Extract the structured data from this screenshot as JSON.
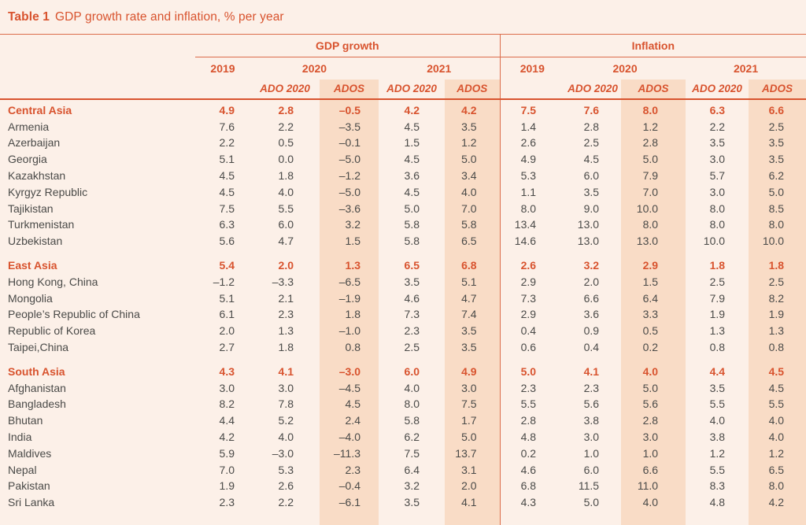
{
  "title": {
    "label": "Table 1",
    "text": "GDP growth rate and inflation, % per year"
  },
  "colors": {
    "accent": "#D8532E",
    "rule_line": "#DB6C4B",
    "shaded_column": "#F9DCC6",
    "background": "#FCF0E8",
    "value_text": "#4A4A48"
  },
  "table": {
    "groups": [
      {
        "label": "GDP growth"
      },
      {
        "label": "Inflation"
      }
    ],
    "years": [
      "2019",
      "2020",
      "2021"
    ],
    "sub_headers": [
      "ADO 2020",
      "ADOS"
    ],
    "rows": [
      {
        "name": "Central Asia",
        "region": true,
        "gdp": [
          "4.9",
          "2.8",
          "–0.5",
          "4.2",
          "4.2"
        ],
        "inflation": [
          "7.5",
          "7.6",
          "8.0",
          "6.3",
          "6.6"
        ]
      },
      {
        "name": "Armenia",
        "gdp": [
          "7.6",
          "2.2",
          "–3.5",
          "4.5",
          "3.5"
        ],
        "inflation": [
          "1.4",
          "2.8",
          "1.2",
          "2.2",
          "2.5"
        ]
      },
      {
        "name": "Azerbaijan",
        "gdp": [
          "2.2",
          "0.5",
          "–0.1",
          "1.5",
          "1.2"
        ],
        "inflation": [
          "2.6",
          "2.5",
          "2.8",
          "3.5",
          "3.5"
        ]
      },
      {
        "name": "Georgia",
        "gdp": [
          "5.1",
          "0.0",
          "–5.0",
          "4.5",
          "5.0"
        ],
        "inflation": [
          "4.9",
          "4.5",
          "5.0",
          "3.0",
          "3.5"
        ]
      },
      {
        "name": "Kazakhstan",
        "gdp": [
          "4.5",
          "1.8",
          "–1.2",
          "3.6",
          "3.4"
        ],
        "inflation": [
          "5.3",
          "6.0",
          "7.9",
          "5.7",
          "6.2"
        ]
      },
      {
        "name": "Kyrgyz Republic",
        "gdp": [
          "4.5",
          "4.0",
          "–5.0",
          "4.5",
          "4.0"
        ],
        "inflation": [
          "1.1",
          "3.5",
          "7.0",
          "3.0",
          "5.0"
        ]
      },
      {
        "name": "Tajikistan",
        "gdp": [
          "7.5",
          "5.5",
          "–3.6",
          "5.0",
          "7.0"
        ],
        "inflation": [
          "8.0",
          "9.0",
          "10.0",
          "8.0",
          "8.5"
        ]
      },
      {
        "name": "Turkmenistan",
        "gdp": [
          "6.3",
          "6.0",
          "3.2",
          "5.8",
          "5.8"
        ],
        "inflation": [
          "13.4",
          "13.0",
          "8.0",
          "8.0",
          "8.0"
        ]
      },
      {
        "name": "Uzbekistan",
        "gdp": [
          "5.6",
          "4.7",
          "1.5",
          "5.8",
          "6.5"
        ],
        "inflation": [
          "14.6",
          "13.0",
          "13.0",
          "10.0",
          "10.0"
        ]
      },
      {
        "name": "East Asia",
        "region": true,
        "gap": true,
        "gdp": [
          "5.4",
          "2.0",
          "1.3",
          "6.5",
          "6.8"
        ],
        "inflation": [
          "2.6",
          "3.2",
          "2.9",
          "1.8",
          "1.8"
        ]
      },
      {
        "name": "Hong Kong, China",
        "gdp": [
          "–1.2",
          "–3.3",
          "–6.5",
          "3.5",
          "5.1"
        ],
        "inflation": [
          "2.9",
          "2.0",
          "1.5",
          "2.5",
          "2.5"
        ]
      },
      {
        "name": "Mongolia",
        "gdp": [
          "5.1",
          "2.1",
          "–1.9",
          "4.6",
          "4.7"
        ],
        "inflation": [
          "7.3",
          "6.6",
          "6.4",
          "7.9",
          "8.2"
        ]
      },
      {
        "name": "People’s Republic of China",
        "gdp": [
          "6.1",
          "2.3",
          "1.8",
          "7.3",
          "7.4"
        ],
        "inflation": [
          "2.9",
          "3.6",
          "3.3",
          "1.9",
          "1.9"
        ]
      },
      {
        "name": "Republic of Korea",
        "gdp": [
          "2.0",
          "1.3",
          "–1.0",
          "2.3",
          "3.5"
        ],
        "inflation": [
          "0.4",
          "0.9",
          "0.5",
          "1.3",
          "1.3"
        ]
      },
      {
        "name": "Taipei,China",
        "gdp": [
          "2.7",
          "1.8",
          "0.8",
          "2.5",
          "3.5"
        ],
        "inflation": [
          "0.6",
          "0.4",
          "0.2",
          "0.8",
          "0.8"
        ]
      },
      {
        "name": "South Asia",
        "region": true,
        "gap": true,
        "gdp": [
          "4.3",
          "4.1",
          "–3.0",
          "6.0",
          "4.9"
        ],
        "inflation": [
          "5.0",
          "4.1",
          "4.0",
          "4.4",
          "4.5"
        ]
      },
      {
        "name": "Afghanistan",
        "gdp": [
          "3.0",
          "3.0",
          "–4.5",
          "4.0",
          "3.0"
        ],
        "inflation": [
          "2.3",
          "2.3",
          "5.0",
          "3.5",
          "4.5"
        ]
      },
      {
        "name": "Bangladesh",
        "gdp": [
          "8.2",
          "7.8",
          "4.5",
          "8.0",
          "7.5"
        ],
        "inflation": [
          "5.5",
          "5.6",
          "5.6",
          "5.5",
          "5.5"
        ]
      },
      {
        "name": "Bhutan",
        "gdp": [
          "4.4",
          "5.2",
          "2.4",
          "5.8",
          "1.7"
        ],
        "inflation": [
          "2.8",
          "3.8",
          "2.8",
          "4.0",
          "4.0"
        ]
      },
      {
        "name": "India",
        "gdp": [
          "4.2",
          "4.0",
          "–4.0",
          "6.2",
          "5.0"
        ],
        "inflation": [
          "4.8",
          "3.0",
          "3.0",
          "3.8",
          "4.0"
        ]
      },
      {
        "name": "Maldives",
        "gdp": [
          "5.9",
          "–3.0",
          "–11.3",
          "7.5",
          "13.7"
        ],
        "inflation": [
          "0.2",
          "1.0",
          "1.0",
          "1.2",
          "1.2"
        ]
      },
      {
        "name": "Nepal",
        "gdp": [
          "7.0",
          "5.3",
          "2.3",
          "6.4",
          "3.1"
        ],
        "inflation": [
          "4.6",
          "6.0",
          "6.6",
          "5.5",
          "6.5"
        ]
      },
      {
        "name": "Pakistan",
        "gdp": [
          "1.9",
          "2.6",
          "–0.4",
          "3.2",
          "2.0"
        ],
        "inflation": [
          "6.8",
          "11.5",
          "11.0",
          "8.3",
          "8.0"
        ]
      },
      {
        "name": "Sri Lanka",
        "gdp": [
          "2.3",
          "2.2",
          "–6.1",
          "3.5",
          "4.1"
        ],
        "inflation": [
          "4.3",
          "5.0",
          "4.0",
          "4.8",
          "4.2"
        ]
      }
    ]
  }
}
